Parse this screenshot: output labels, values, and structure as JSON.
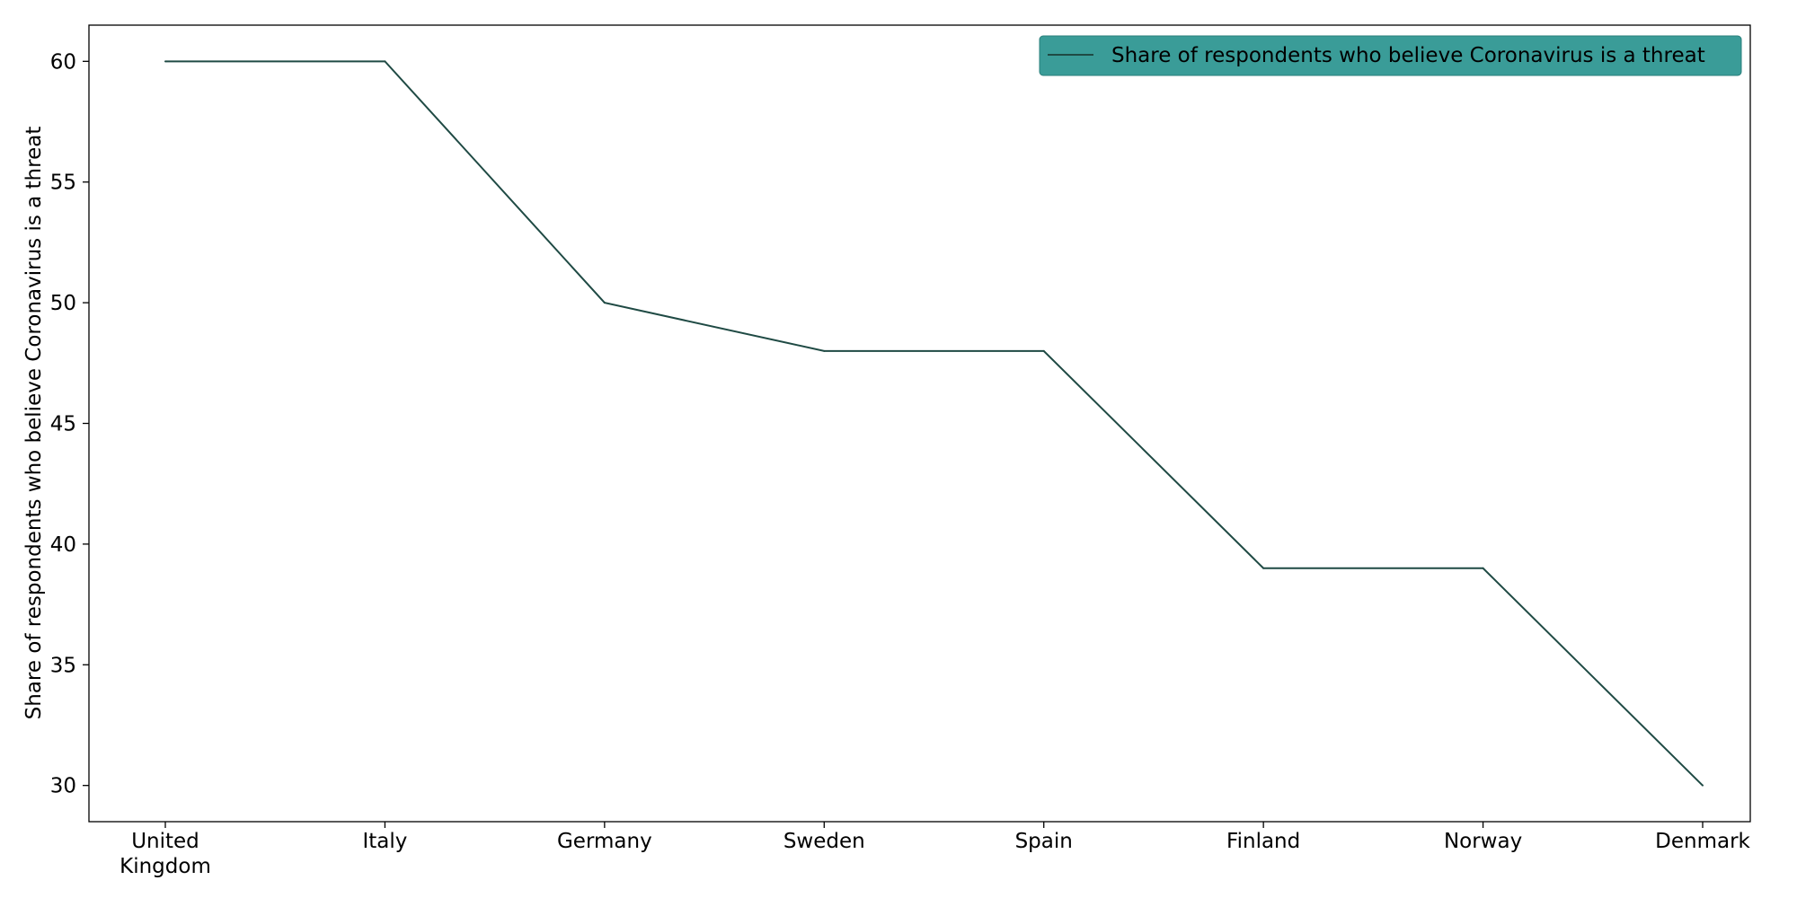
{
  "chart_data": {
    "type": "line",
    "categories": [
      "United\nKingdom",
      "Italy",
      "Germany",
      "Sweden",
      "Spain",
      "Finland",
      "Norway",
      "Denmark"
    ],
    "series": [
      {
        "name": "Share of respondents who believe Coronavirus is a threat",
        "values": [
          60,
          60,
          50,
          48,
          48,
          39,
          39,
          30
        ]
      }
    ],
    "title": "",
    "xlabel": "",
    "ylabel": "Share of respondents who believe Coronavirus is a threat",
    "ylim": [
      28.5,
      61.5
    ],
    "yticks": [
      30,
      35,
      40,
      45,
      50,
      55,
      60
    ],
    "grid": false,
    "legend_position": "top-right",
    "colors": {
      "line": "#1f4a44",
      "legend_background": "#3a9c98",
      "axes": "#000000"
    }
  }
}
